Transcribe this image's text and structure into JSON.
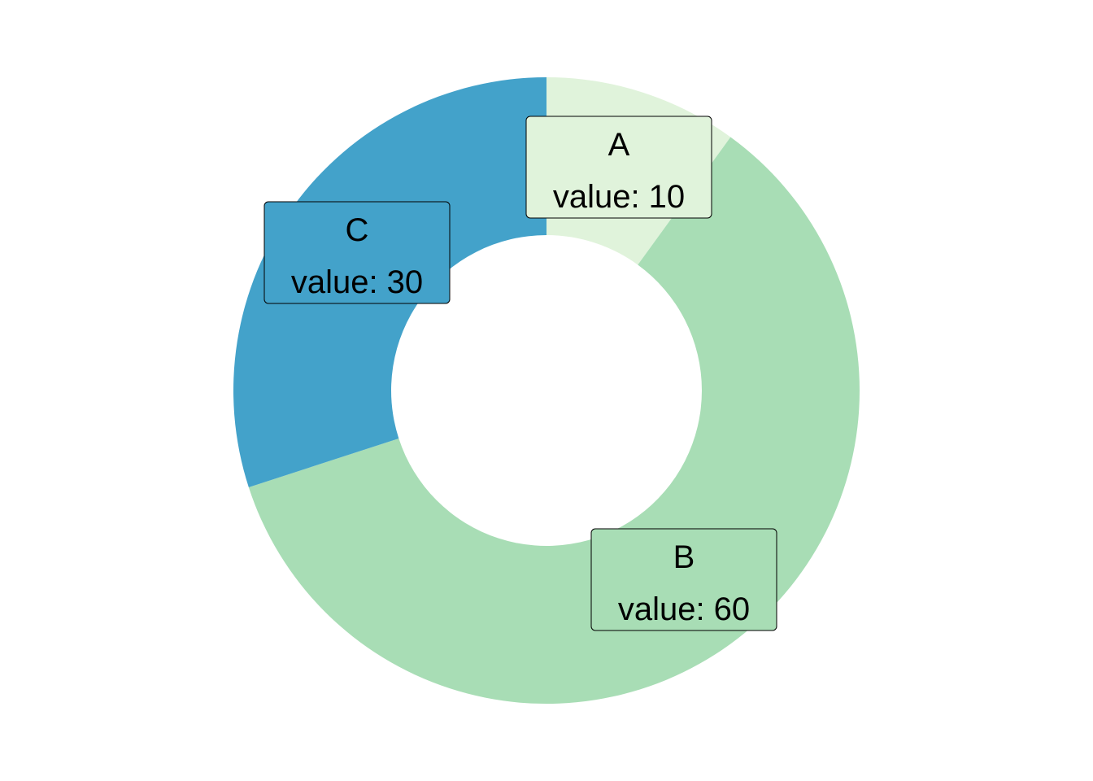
{
  "chart_data": {
    "type": "pie",
    "donut": true,
    "title": "",
    "categories": [
      "A",
      "B",
      "C"
    ],
    "values": [
      10,
      60,
      30
    ],
    "colors": [
      "#e0f3db",
      "#a8ddb5",
      "#43a2ca"
    ],
    "labels": [
      {
        "category": "A",
        "text": "value: 10"
      },
      {
        "category": "B",
        "text": "value: 60"
      },
      {
        "category": "C",
        "text": "value: 30"
      }
    ],
    "legend": "none",
    "grid": false
  }
}
